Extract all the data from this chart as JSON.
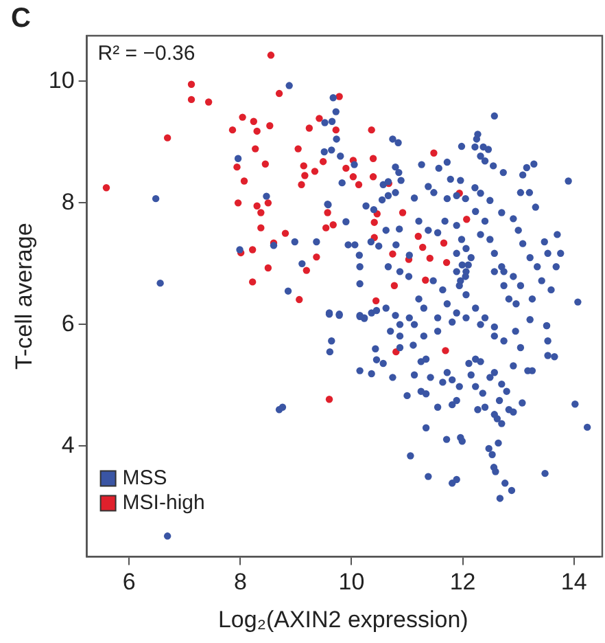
{
  "chart_data": {
    "type": "scatter",
    "title": "C",
    "xlabel": "Log₂(AXIN2 expression)",
    "ylabel": "T-cell average",
    "annotations": [
      "R² = −0.36"
    ],
    "xlim": [
      5.24,
      14.46
    ],
    "ylim": [
      2.18,
      10.75
    ],
    "xticks": [
      6,
      8,
      10,
      12,
      14
    ],
    "yticks": [
      4,
      6,
      8,
      10
    ],
    "grid": false,
    "legend": "bottom left",
    "marker": "circle",
    "series": [
      {
        "name": "MSS",
        "color": "#3a55a4",
        "x": [
          6.48,
          6.56,
          8.88,
          7.96,
          8.47,
          9.57,
          8.98,
          9.37,
          7.99,
          8.6,
          9.11,
          8.86,
          9.52,
          9.65,
          9.72,
          9.67,
          9.8,
          6.69,
          8.7,
          14.24,
          14.02,
          12.57,
          9.73,
          9.64,
          9.51,
          10.74,
          10.84,
          11.26,
          10.79,
          10.85,
          11.57,
          11.72,
          11.98,
          12.27,
          12.25,
          12.22,
          12.37,
          12.46,
          12.32,
          12.4,
          12.55,
          12.73,
          13.15,
          13.28,
          13.08,
          13.9,
          11.78,
          11.96,
          9.83,
          10.05,
          10.57,
          10.66,
          10.89,
          10.79,
          11.13,
          11.38,
          11.48,
          11.72,
          11.89,
          12.05,
          12.22,
          12.32,
          12.49,
          12.7,
          12.91,
          13.04,
          13.2,
          13.31,
          10.26,
          10.4,
          10.55,
          10.66,
          9.9,
          9.58,
          9.94,
          10.06,
          10.14,
          10.15,
          10.15,
          10.35,
          10.49,
          10.62,
          10.86,
          10.8,
          11.04,
          10.66,
          10.87,
          11.03,
          11.21,
          11.38,
          11.55,
          11.68,
          11.89,
          11.98,
          11.89,
          11.99,
          12.06,
          11.94,
          12.06,
          12.23,
          12.4,
          12.32,
          12.49,
          12.57,
          12.7,
          12.74,
          12.83,
          13.0,
          13.08,
          13.21,
          13.34,
          13.42,
          13.59,
          13.7,
          13.76,
          13.68,
          13.47,
          13.53,
          14.07,
          12.96,
          13.25,
          13.51,
          12.23,
          12.4,
          12.57,
          11.72,
          11.89,
          11.55,
          11.21,
          11.3,
          11.04,
          10.62,
          10.79,
          10.87,
          10.36,
          10.45,
          9.6,
          9.78,
          10.15,
          10.23,
          11.89,
          12.05,
          11.96,
          12.06,
          12.15,
          12.1,
          11.47,
          11.64,
          12.57,
          12.74,
          12.91,
          13.04,
          9.6,
          9.78,
          9.64,
          9.61,
          8.76,
          10.15,
          10.36,
          10.43,
          10.45,
          10.57,
          10.74,
          11.0,
          10.87,
          11.11,
          11.13,
          11.25,
          11.34,
          11.25,
          11.34,
          11.42,
          11.55,
          11.64,
          11.72,
          11.81,
          11.94,
          11.81,
          11.89,
          12.11,
          12.23,
          12.32,
          12.15,
          12.23,
          12.36,
          12.27,
          12.4,
          12.49,
          12.57,
          12.7,
          12.57,
          12.62,
          12.7,
          12.66,
          12.79,
          12.83,
          12.91,
          13.07,
          12.91,
          13.04,
          13.17,
          13.25,
          13.53,
          13.53,
          13.65,
          13.51,
          13.21,
          11.34,
          11.71,
          11.96,
          11.99,
          11.06,
          11.38,
          11.81,
          11.89,
          12.47,
          12.53,
          12.64,
          12.56,
          12.59,
          12.76,
          12.88,
          12.67,
          13.48,
          11.13,
          11.3,
          11.55,
          11.81,
          12.06,
          12.32,
          12.57,
          12.74,
          12.95,
          10.15,
          10.23,
          10.7,
          10.87
        ],
        "values": [
          8.07,
          6.68,
          9.93,
          8.73,
          8.11,
          7.98,
          7.36,
          7.36,
          7.23,
          7.3,
          7.0,
          6.55,
          9.32,
          9.34,
          9.5,
          9.73,
          8.77,
          2.52,
          4.6,
          4.31,
          4.69,
          9.43,
          9.05,
          8.87,
          8.84,
          9.05,
          8.99,
          8.63,
          8.59,
          8.5,
          8.57,
          8.67,
          8.93,
          9.13,
          9.05,
          8.92,
          8.92,
          8.88,
          8.77,
          8.69,
          8.61,
          8.5,
          8.58,
          8.64,
          8.46,
          8.36,
          8.39,
          8.37,
          8.33,
          8.63,
          8.3,
          8.35,
          8.37,
          8.17,
          8.08,
          8.27,
          8.17,
          8.07,
          8.12,
          8.07,
          8.25,
          8.16,
          8.04,
          7.84,
          7.74,
          8.17,
          8.17,
          7.93,
          7.95,
          7.89,
          8.05,
          8.12,
          7.69,
          7.97,
          7.31,
          7.31,
          7.14,
          6.95,
          6.67,
          7.36,
          7.29,
          7.55,
          7.57,
          7.31,
          7.14,
          6.95,
          6.87,
          6.79,
          7.7,
          7.55,
          7.51,
          7.7,
          7.63,
          7.4,
          7.17,
          6.98,
          6.87,
          6.64,
          6.49,
          7.86,
          7.7,
          7.48,
          7.4,
          7.17,
          6.95,
          6.64,
          6.42,
          7.55,
          7.33,
          7.1,
          6.95,
          6.72,
          6.57,
          7.48,
          7.17,
          6.95,
          7.36,
          7.17,
          6.37,
          6.34,
          6.42,
          5.98,
          6.27,
          6.11,
          5.96,
          6.34,
          6.19,
          6.11,
          6.42,
          6.27,
          6.11,
          6.27,
          6.15,
          6.0,
          6.19,
          6.23,
          6.19,
          6.15,
          6.13,
          6.1,
          6.87,
          6.79,
          6.72,
          7.25,
          7.1,
          6.98,
          6.72,
          6.57,
          6.87,
          6.87,
          6.79,
          6.64,
          6.17,
          6.17,
          5.73,
          5.55,
          4.64,
          5.24,
          5.19,
          5.6,
          5.42,
          5.36,
          5.13,
          4.83,
          5.62,
          5.66,
          5.17,
          5.39,
          5.43,
          4.9,
          4.86,
          5.13,
          4.64,
          5.05,
          5.21,
          5.09,
          4.98,
          4.68,
          4.75,
          5.36,
          5.43,
          5.39,
          5.17,
          4.98,
          4.87,
          4.6,
          4.64,
          5.13,
          5.21,
          5.02,
          4.52,
          4.45,
          4.37,
          4.75,
          4.9,
          4.6,
          4.56,
          4.71,
          5.32,
          5.62,
          5.24,
          5.24,
          5.73,
          5.49,
          5.47,
          5.98,
          6.08,
          4.3,
          4.11,
          4.14,
          4.08,
          3.84,
          3.5,
          3.39,
          3.45,
          3.96,
          3.86,
          4.05,
          3.65,
          3.58,
          3.39,
          3.27,
          3.14,
          3.55,
          6.0,
          5.81,
          5.89,
          6.04,
          6.11,
          6.0,
          5.81,
          5.73,
          5.89,
          6.15,
          6.11,
          5.89,
          5.81
        ]
      },
      {
        "name": "MSI-high",
        "color": "#e0202c",
        "x": [
          5.59,
          6.69,
          7.12,
          7.12,
          7.43,
          7.86,
          8.04,
          8.24,
          8.3,
          8.53,
          8.55,
          8.7,
          8.27,
          7.94,
          8.07,
          8.45,
          7.96,
          8.3,
          8.5,
          8.37,
          8.37,
          8.01,
          8.22,
          8.6,
          8.81,
          8.5,
          8.22,
          9.06,
          9.19,
          9.37,
          9.04,
          9.14,
          9.16,
          9.34,
          9.24,
          9.42,
          9.49,
          9.57,
          9.54,
          9.67,
          9.78,
          9.1,
          9.72,
          10.36,
          9.9,
          10.03,
          10.03,
          10.13,
          10.39,
          10.39,
          10.67,
          11.48,
          11.94,
          10.41,
          10.46,
          10.92,
          10.41,
          11.2,
          11.28,
          11.66,
          12.07,
          10.74,
          11.03,
          11.41,
          11.71,
          11.33,
          10.77,
          10.44,
          10.8,
          11.69,
          9.6
        ],
        "values": [
          8.25,
          9.07,
          9.7,
          9.95,
          9.66,
          9.2,
          9.41,
          9.34,
          9.18,
          9.27,
          10.43,
          9.8,
          8.89,
          8.59,
          8.36,
          8.64,
          8.0,
          7.95,
          8.0,
          7.84,
          7.59,
          7.18,
          7.23,
          7.34,
          7.5,
          6.93,
          6.7,
          6.41,
          6.89,
          7.11,
          8.89,
          8.61,
          8.45,
          8.52,
          9.23,
          9.39,
          8.68,
          7.84,
          7.59,
          7.64,
          9.75,
          8.3,
          9.2,
          9.2,
          8.57,
          8.7,
          8.43,
          8.3,
          8.73,
          8.43,
          8.32,
          8.82,
          8.16,
          7.68,
          7.82,
          7.84,
          7.43,
          7.45,
          7.27,
          7.34,
          7.73,
          7.16,
          7.07,
          7.09,
          7.02,
          6.73,
          6.64,
          6.39,
          5.55,
          5.57,
          4.77
        ]
      }
    ]
  }
}
